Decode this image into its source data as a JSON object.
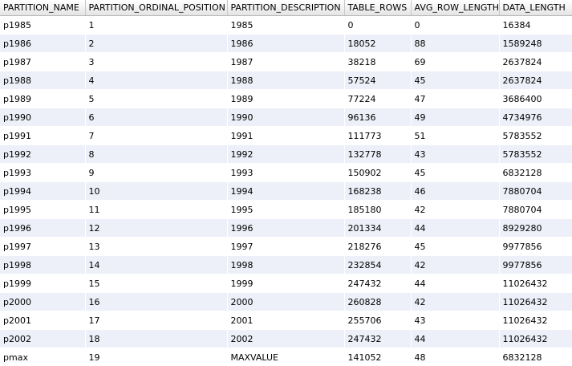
{
  "grid": {
    "columns": [
      "PARTITION_NAME",
      "PARTITION_ORDINAL_POSITION",
      "PARTITION_DESCRIPTION",
      "TABLE_ROWS",
      "AVG_ROW_LENGTH",
      "DATA_LENGTH"
    ],
    "rows": [
      [
        "p1985",
        "1",
        "1985",
        "0",
        "0",
        "16384"
      ],
      [
        "p1986",
        "2",
        "1986",
        "18052",
        "88",
        "1589248"
      ],
      [
        "p1987",
        "3",
        "1987",
        "38218",
        "69",
        "2637824"
      ],
      [
        "p1988",
        "4",
        "1988",
        "57524",
        "45",
        "2637824"
      ],
      [
        "p1989",
        "5",
        "1989",
        "77224",
        "47",
        "3686400"
      ],
      [
        "p1990",
        "6",
        "1990",
        "96136",
        "49",
        "4734976"
      ],
      [
        "p1991",
        "7",
        "1991",
        "111773",
        "51",
        "5783552"
      ],
      [
        "p1992",
        "8",
        "1992",
        "132778",
        "43",
        "5783552"
      ],
      [
        "p1993",
        "9",
        "1993",
        "150902",
        "45",
        "6832128"
      ],
      [
        "p1994",
        "10",
        "1994",
        "168238",
        "46",
        "7880704"
      ],
      [
        "p1995",
        "11",
        "1995",
        "185180",
        "42",
        "7880704"
      ],
      [
        "p1996",
        "12",
        "1996",
        "201334",
        "44",
        "8929280"
      ],
      [
        "p1997",
        "13",
        "1997",
        "218276",
        "45",
        "9977856"
      ],
      [
        "p1998",
        "14",
        "1998",
        "232854",
        "42",
        "9977856"
      ],
      [
        "p1999",
        "15",
        "1999",
        "247432",
        "44",
        "11026432"
      ],
      [
        "p2000",
        "16",
        "2000",
        "260828",
        "42",
        "11026432"
      ],
      [
        "p2001",
        "17",
        "2001",
        "255706",
        "43",
        "11026432"
      ],
      [
        "p2002",
        "18",
        "2002",
        "247432",
        "44",
        "11026432"
      ],
      [
        "pmax",
        "19",
        "MAXVALUE",
        "141052",
        "48",
        "6832128"
      ]
    ]
  }
}
